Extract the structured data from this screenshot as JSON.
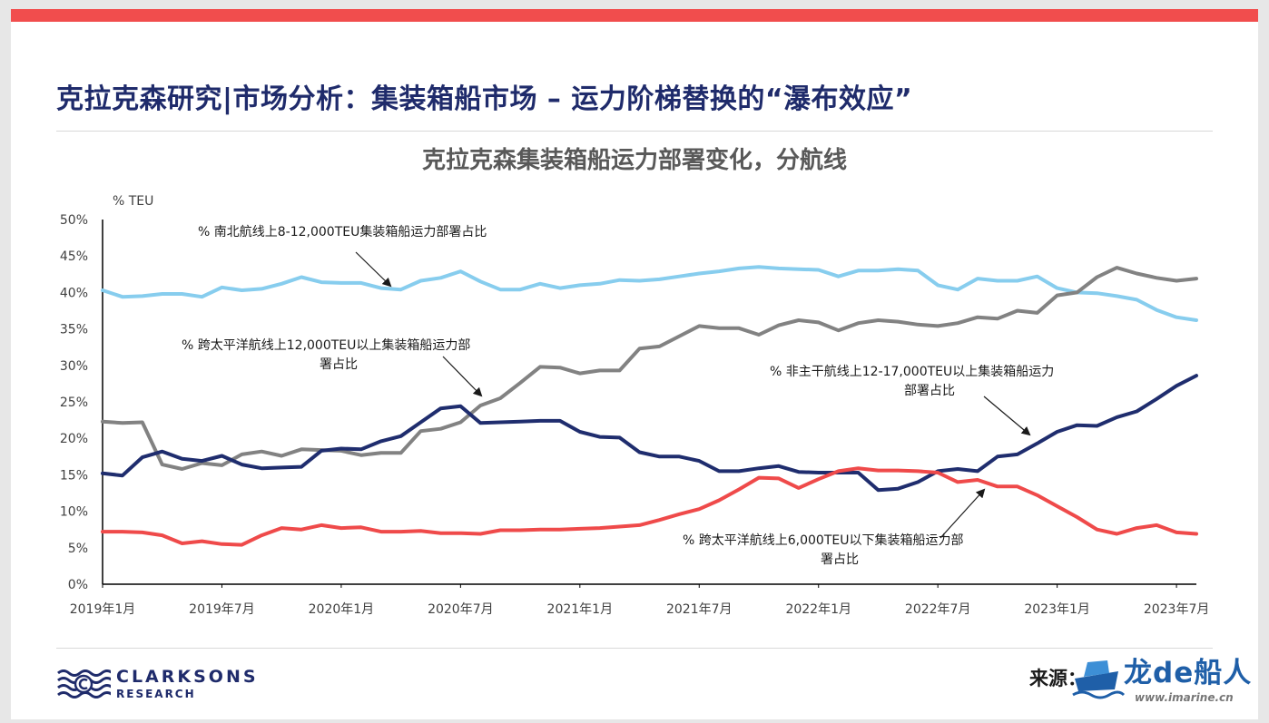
{
  "page": {
    "title": "克拉克森研究|市场分析：集装箱船市场 – 运力阶梯替换的“瀑布效应”",
    "source_label": "来源：",
    "logo_name": "CLARKSONS",
    "logo_sub": "RESEARCH",
    "watermark_main": "龙de船人",
    "watermark_url": "www.imarine.cn"
  },
  "colors": {
    "accent_bar": "#f14d4d",
    "title_navy": "#1f2b6b"
  },
  "chart_data": {
    "type": "line",
    "title": "克拉克森集装箱船运力部署变化，分航线",
    "ylabel": "% TEU",
    "ylim": [
      0,
      50
    ],
    "yticks": [
      "0%",
      "5%",
      "10%",
      "15%",
      "20%",
      "25%",
      "30%",
      "35%",
      "40%",
      "45%",
      "50%"
    ],
    "x_tick_labels": [
      "2019年1月",
      "2019年7月",
      "2020年1月",
      "2020年7月",
      "2021年1月",
      "2021年7月",
      "2022年1月",
      "2022年7月",
      "2023年1月",
      "2023年7月"
    ],
    "x_start": "2019-01",
    "x_end": "2023-07",
    "grid": false,
    "series": [
      {
        "name": "% 南北航线上8-12,000TEU集装箱船运力部署占比",
        "color": "#87cdee",
        "values": [
          40.3,
          39.4,
          39.5,
          39.8,
          39.8,
          39.4,
          40.7,
          40.3,
          40.5,
          41.2,
          42.1,
          41.4,
          41.3,
          41.3,
          40.6,
          40.4,
          41.6,
          42.0,
          42.9,
          41.5,
          40.4,
          40.4,
          41.2,
          40.6,
          41.0,
          41.2,
          41.7,
          41.6,
          41.8,
          42.2,
          42.6,
          42.9,
          43.3,
          43.5,
          43.3,
          43.2,
          43.1,
          42.2,
          43.0,
          43.0,
          43.2,
          43.0,
          41.0,
          40.4,
          41.9,
          41.6,
          41.6,
          42.2,
          40.6,
          40.0,
          39.9,
          39.5,
          39.0,
          37.6,
          36.6,
          36.2
        ]
      },
      {
        "name": "% 跨太平洋航线上12,000TEU以上集装箱船运力部署占比",
        "color": "#828282",
        "values": [
          22.3,
          22.1,
          22.2,
          16.4,
          15.8,
          16.6,
          16.3,
          17.8,
          18.2,
          17.6,
          18.5,
          18.4,
          18.3,
          17.7,
          18.0,
          18.0,
          21.0,
          21.3,
          22.2,
          24.5,
          25.5,
          27.6,
          29.8,
          29.7,
          28.9,
          29.3,
          29.3,
          32.3,
          32.6,
          34.0,
          35.4,
          35.1,
          35.1,
          34.2,
          35.5,
          36.2,
          35.9,
          34.8,
          35.8,
          36.2,
          36.0,
          35.6,
          35.4,
          35.8,
          36.6,
          36.4,
          37.5,
          37.2,
          39.6,
          40.0,
          42.1,
          43.4,
          42.6,
          42.0,
          41.6,
          41.9
        ]
      },
      {
        "name": "% 非主干航线上12-17,000TEU以上集装箱船运力部署占比",
        "color": "#1f2d6e",
        "values": [
          15.2,
          14.9,
          17.4,
          18.2,
          17.2,
          16.9,
          17.6,
          16.4,
          15.9,
          16.0,
          16.1,
          18.3,
          18.6,
          18.5,
          19.6,
          20.3,
          22.2,
          24.1,
          24.4,
          22.1,
          22.2,
          22.3,
          22.4,
          22.4,
          20.9,
          20.2,
          20.1,
          18.1,
          17.5,
          17.5,
          16.9,
          15.5,
          15.5,
          15.9,
          16.2,
          15.4,
          15.3,
          15.3,
          15.3,
          12.9,
          13.1,
          14.0,
          15.5,
          15.8,
          15.5,
          17.5,
          17.8,
          19.3,
          20.9,
          21.8,
          21.7,
          22.9,
          23.7,
          25.4,
          27.2,
          28.6
        ]
      },
      {
        "name": "% 跨太平洋航线上6,000TEU以下集装箱船运力部署占比",
        "color": "#ef4a4a",
        "values": [
          7.2,
          7.2,
          7.1,
          6.7,
          5.6,
          5.9,
          5.5,
          5.4,
          6.7,
          7.7,
          7.5,
          8.1,
          7.7,
          7.8,
          7.2,
          7.2,
          7.3,
          7.0,
          7.0,
          6.9,
          7.4,
          7.4,
          7.5,
          7.5,
          7.6,
          7.7,
          7.9,
          8.1,
          8.8,
          9.6,
          10.3,
          11.5,
          13.0,
          14.6,
          14.5,
          13.2,
          14.4,
          15.5,
          15.9,
          15.6,
          15.6,
          15.5,
          15.3,
          14.0,
          14.3,
          13.4,
          13.4,
          12.2,
          10.7,
          9.2,
          7.5,
          6.9,
          7.7,
          8.1,
          7.1,
          6.9
        ]
      }
    ],
    "annotations": [
      {
        "lines": [
          "% 南北航线上8-12,000TEU集装箱船运力部署占比"
        ]
      },
      {
        "lines": [
          "% 跨太平洋航线上12,000TEU以上集装箱船运力部",
          "署占比"
        ]
      },
      {
        "lines": [
          "% 非主干航线上12-17,000TEU以上集装箱船运力",
          "部署占比"
        ]
      },
      {
        "lines": [
          "% 跨太平洋航线上6,000TEU以下集装箱船运力部",
          "署占比"
        ]
      }
    ]
  }
}
